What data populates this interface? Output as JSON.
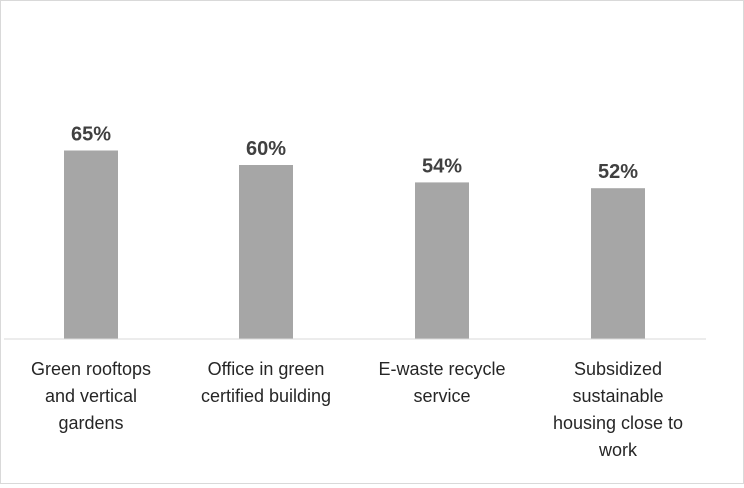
{
  "chart_data": {
    "type": "bar",
    "title": "",
    "xlabel": "",
    "ylabel": "",
    "ylim": [
      0,
      100
    ],
    "grid": false,
    "legend": "none",
    "categories": [
      [
        "Green rooftops",
        "and vertical",
        "gardens"
      ],
      [
        "Office in green",
        "certified building"
      ],
      [
        "E-waste recycle",
        "service"
      ],
      [
        "Subsidized",
        "sustainable",
        "housing close to",
        "work"
      ]
    ],
    "values": [
      65,
      60,
      54,
      52
    ],
    "data_labels": [
      "65%",
      "60%",
      "54%",
      "52%"
    ],
    "colors": {
      "bar": "#a6a6a6",
      "axis": "#d9d9d9",
      "label": "#404040",
      "category": "#262626"
    }
  }
}
